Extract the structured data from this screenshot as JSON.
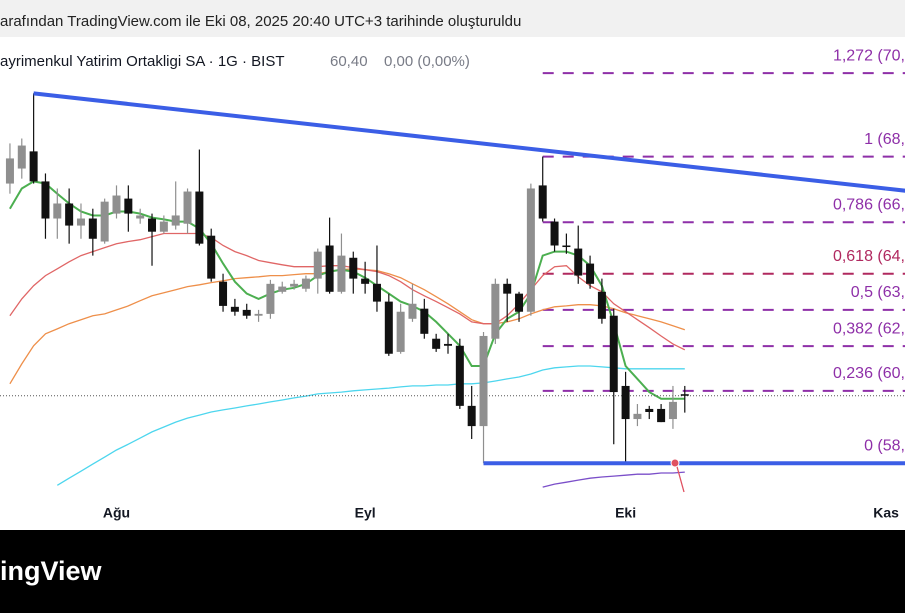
{
  "header": {
    "text": "arafından TradingView.com ile Eki 08, 2025 20:40 UTC+3 tarihinde oluşturuldu"
  },
  "symbol": {
    "name": "ayrimenkul Yatirim Ortakligi SA · 1G · BIST",
    "last": "60,40",
    "change": "0,00 (0,00%)"
  },
  "footer": {
    "logo": "ingView"
  },
  "chart_data": {
    "type": "candlestick",
    "up_color": "#8f8f8f",
    "down_color": "#111111",
    "xlim": [
      -0.84,
      75.6
    ],
    "ylim": [
      57.0,
      72.1
    ],
    "xticks": [
      {
        "value": 9,
        "label": "Ağu"
      },
      {
        "value": 30,
        "label": "Eyl"
      },
      {
        "value": 52,
        "label": "Eki"
      },
      {
        "value": 74,
        "label": "Kas"
      }
    ],
    "open": [
      67.32,
      67.81,
      68.37,
      67.39,
      66.18,
      66.67,
      65.95,
      66.18,
      65.43,
      66.34,
      66.83,
      66.18,
      66.18,
      65.75,
      65.95,
      66.01,
      67.06,
      65.62,
      64.12,
      63.3,
      63.2,
      63.01,
      63.07,
      63.79,
      63.96,
      63.89,
      64.22,
      65.3,
      63.79,
      64.9,
      64.22,
      64.05,
      63.47,
      61.83,
      62.91,
      63.24,
      62.26,
      62.09,
      62.03,
      60.07,
      59.41,
      62.26,
      64.05,
      63.73,
      63.14,
      67.26,
      66.08,
      65.3,
      65.2,
      64.71,
      63.79,
      63.01,
      60.72,
      59.64,
      59.97,
      59.97,
      59.64,
      60.45
    ],
    "high": [
      68.63,
      68.79,
      70.26,
      67.65,
      67.16,
      67.16,
      66.67,
      66.5,
      66.83,
      67.26,
      67.26,
      66.5,
      66.34,
      66.28,
      67.39,
      67.16,
      68.43,
      65.85,
      64.38,
      63.56,
      63.4,
      63.2,
      64.18,
      64.12,
      64.18,
      64.32,
      65.2,
      66.21,
      65.69,
      65.1,
      64.77,
      65.3,
      63.73,
      63.4,
      64.05,
      63.56,
      62.42,
      62.42,
      62.26,
      60.72,
      62.48,
      64.22,
      64.22,
      63.79,
      67.32,
      68.2,
      66.18,
      65.69,
      65.95,
      64.97,
      64.22,
      63.24,
      61.18,
      60.13,
      60.07,
      60.13,
      60.72,
      60.72
    ],
    "low": [
      66.99,
      67.48,
      67.32,
      65.52,
      65.52,
      65.36,
      65.52,
      64.97,
      65.36,
      66.18,
      65.75,
      66.01,
      64.64,
      65.69,
      65.82,
      65.69,
      65.3,
      64.12,
      63.14,
      63.01,
      62.91,
      62.81,
      62.91,
      63.73,
      63.86,
      63.79,
      63.73,
      63.73,
      63.73,
      63.73,
      63.73,
      63.14,
      61.7,
      61.77,
      62.81,
      62.26,
      61.83,
      61.77,
      59.97,
      58.99,
      58.2,
      62.09,
      62.81,
      62.81,
      63.01,
      66.08,
      65.1,
      65.03,
      64.05,
      63.89,
      62.75,
      58.82,
      58.15,
      59.41,
      59.64,
      59.54,
      59.32,
      59.85
    ],
    "close": [
      68.14,
      68.56,
      67.39,
      66.18,
      66.67,
      65.95,
      66.18,
      65.52,
      66.73,
      66.93,
      66.34,
      66.28,
      65.75,
      66.08,
      66.28,
      67.06,
      65.36,
      64.22,
      63.33,
      63.14,
      63.01,
      63.07,
      64.05,
      63.96,
      64.05,
      64.22,
      65.1,
      63.79,
      64.97,
      64.22,
      64.05,
      63.47,
      61.77,
      63.14,
      63.4,
      62.42,
      61.93,
      62.03,
      60.07,
      59.41,
      62.35,
      64.05,
      63.73,
      63.14,
      67.16,
      66.18,
      65.3,
      65.25,
      64.32,
      64.05,
      62.91,
      60.52,
      59.64,
      59.81,
      59.87,
      59.54,
      60.2,
      60.4
    ],
    "series": [
      {
        "color": "#ee8f4a",
        "values": [
          60.79,
          61.44,
          62.03,
          62.42,
          62.58,
          62.75,
          62.88,
          63.01,
          63.07,
          63.2,
          63.33,
          63.5,
          63.66,
          63.76,
          63.86,
          63.96,
          64.02,
          64.09,
          64.15,
          64.22,
          64.25,
          64.28,
          64.32,
          64.32,
          64.35,
          64.38,
          64.38,
          64.45,
          64.51,
          64.54,
          64.51,
          64.48,
          64.38,
          64.25,
          64.05,
          63.86,
          63.63,
          63.4,
          63.14,
          62.88,
          62.75,
          62.75,
          62.81,
          62.91,
          63.07,
          63.2,
          63.3,
          63.33,
          63.37,
          63.37,
          63.33,
          63.24,
          63.11,
          63.01,
          62.91,
          62.81,
          62.68,
          62.55
        ]
      },
      {
        "color": "#4dd6ee",
        "values": [
          null,
          null,
          null,
          null,
          57.48,
          57.71,
          57.94,
          58.17,
          58.4,
          58.63,
          58.82,
          59.02,
          59.22,
          59.38,
          59.54,
          59.67,
          59.77,
          59.87,
          59.94,
          60.0,
          60.07,
          60.13,
          60.2,
          60.26,
          60.33,
          60.39,
          60.46,
          60.49,
          60.52,
          60.56,
          60.59,
          60.62,
          60.65,
          60.69,
          60.72,
          60.72,
          60.75,
          60.75,
          60.79,
          60.79,
          60.82,
          60.88,
          60.95,
          61.01,
          61.11,
          61.24,
          61.31,
          61.34,
          61.37,
          61.37,
          61.34,
          61.31,
          61.28,
          61.28,
          61.28,
          61.28,
          61.28,
          61.28
        ]
      },
      {
        "color": "#7b4fc9",
        "values": [
          null,
          null,
          null,
          null,
          null,
          null,
          null,
          null,
          null,
          null,
          null,
          null,
          null,
          null,
          null,
          null,
          null,
          null,
          null,
          null,
          null,
          null,
          null,
          null,
          null,
          null,
          null,
          null,
          null,
          null,
          null,
          null,
          null,
          null,
          null,
          null,
          null,
          null,
          null,
          null,
          null,
          null,
          null,
          null,
          null,
          57.42,
          57.52,
          57.58,
          57.65,
          57.71,
          57.75,
          57.78,
          57.81,
          57.84,
          57.84,
          57.88,
          57.88,
          57.91
        ]
      },
      {
        "color": "#e06666",
        "values": [
          63.01,
          63.56,
          63.99,
          64.32,
          64.54,
          64.77,
          64.97,
          65.1,
          65.23,
          65.36,
          65.43,
          65.49,
          65.59,
          65.69,
          65.69,
          65.69,
          65.69,
          65.56,
          65.3,
          65.1,
          64.97,
          64.81,
          64.74,
          64.67,
          64.61,
          64.61,
          64.61,
          64.64,
          64.64,
          64.58,
          64.51,
          64.45,
          64.32,
          64.12,
          63.86,
          63.66,
          63.47,
          63.27,
          63.07,
          62.81,
          62.75,
          62.75,
          63.01,
          63.4,
          63.86,
          64.32,
          64.61,
          64.64,
          64.28,
          63.99,
          63.79,
          63.4,
          63.14,
          62.88,
          62.62,
          62.35,
          62.09,
          61.9
        ]
      },
      {
        "color": "#4caf50",
        "values": [
          66.5,
          67.16,
          67.39,
          67.32,
          66.99,
          66.67,
          66.41,
          66.28,
          66.28,
          66.41,
          66.41,
          66.34,
          66.21,
          66.15,
          66.08,
          66.08,
          65.85,
          65.36,
          64.71,
          64.12,
          63.73,
          63.56,
          63.73,
          63.86,
          63.92,
          64.05,
          64.32,
          64.45,
          64.51,
          64.45,
          64.25,
          63.99,
          63.73,
          63.47,
          63.33,
          63.14,
          62.81,
          62.42,
          62.03,
          61.37,
          61.37,
          62.42,
          62.91,
          63.14,
          63.73,
          64.97,
          65.1,
          65.1,
          64.97,
          64.64,
          63.99,
          62.75,
          61.37,
          60.95,
          60.52,
          60.3,
          60.3,
          60.3
        ]
      }
    ],
    "trendlines": [
      {
        "color": "#3b5ee6",
        "x": [
          2,
          76
        ],
        "values": [
          70.26,
          67.07
        ]
      },
      {
        "color": "#3b5ee6",
        "x": [
          40,
          76
        ],
        "values": [
          58.2,
          58.2
        ]
      }
    ],
    "fib_x": [
      45,
      76
    ],
    "fib_levels": [
      {
        "value": 70.92,
        "label": "1,272 (70,",
        "color": "#8e2fa8"
      },
      {
        "value": 68.2,
        "label": "1 (68,",
        "color": "#8e2fa8"
      },
      {
        "value": 66.06,
        "label": "0,786 (66,",
        "color": "#8e2fa8"
      },
      {
        "value": 64.38,
        "label": "0,618 (64,",
        "color": "#b0285f"
      },
      {
        "value": 63.2,
        "label": "0,5 (63,",
        "color": "#8e2fa8"
      },
      {
        "value": 62.02,
        "label": "0,382 (62,",
        "color": "#8e2fa8"
      },
      {
        "value": 60.56,
        "label": "0,236 (60,",
        "color": "#8e2fa8"
      },
      {
        "value": 58.2,
        "label": "0 (58,",
        "color": "#8e2fa8"
      }
    ]
  }
}
